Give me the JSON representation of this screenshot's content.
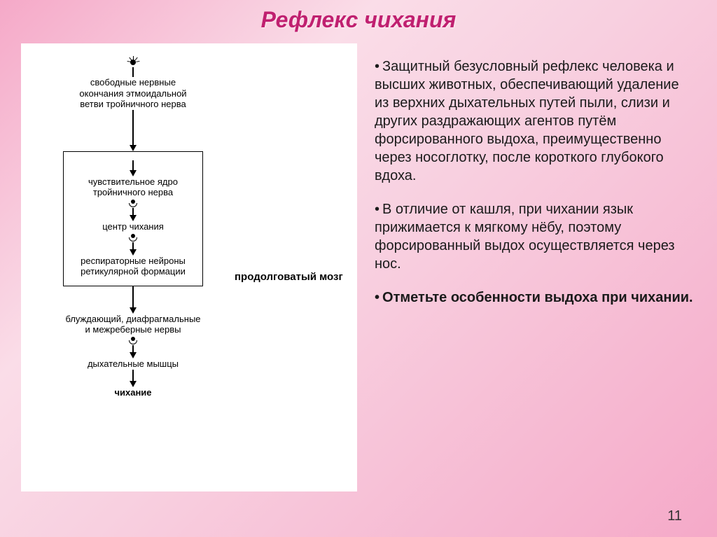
{
  "title": "Рефлекс чихания",
  "diagram": {
    "nodes": [
      {
        "id": "receptor",
        "label": "",
        "icon": "receptor"
      },
      {
        "id": "n1",
        "label": "свободные нервные\nокончания этмоидальной\nветви тройничного нерва"
      },
      {
        "id": "box_start"
      },
      {
        "id": "n2",
        "label": "чувствительное ядро\nтройничного нерва"
      },
      {
        "id": "syn1",
        "icon": "synapse"
      },
      {
        "id": "n3",
        "label": "центр чихания"
      },
      {
        "id": "syn2",
        "icon": "synapse"
      },
      {
        "id": "n4",
        "label": "респираторные нейроны\nретикулярной формации"
      },
      {
        "id": "box_end"
      },
      {
        "id": "n5",
        "label": "блуждающий, диафрагмальные\nи межреберные нервы"
      },
      {
        "id": "syn3",
        "icon": "synapse"
      },
      {
        "id": "n6",
        "label": "дыхательные мышцы"
      },
      {
        "id": "n7",
        "label": "чихание",
        "bold": true
      }
    ],
    "side_label": "продолговатый мозг",
    "colors": {
      "background": "#ffffff",
      "text": "#000000",
      "border": "#000000"
    },
    "label_fontsize": 13,
    "side_label_fontsize": 15
  },
  "paragraphs": [
    {
      "text": "Защитный безусловный рефлекс человека и высших животных, обеспечивающий удаление из верхних дыхательных путей пыли, слизи и других раздражающих агентов путём форсированного выдоха, преимущественно через носоглотку, после короткого глубокого вдоха.",
      "bold": false
    },
    {
      "text": "В отличие от кашля, при чихании язык прижимается к мягкому нёбу, поэтому форсированный выдох осуществляется через нос.",
      "bold": false
    },
    {
      "text": "Отметьте особенности выдоха при чихании.",
      "bold": true
    }
  ],
  "page_number": "11",
  "style": {
    "title_color": "#c02070",
    "title_fontsize": 32,
    "body_fontsize": 20,
    "bg_gradient": [
      "#f5a9c8",
      "#fadde8",
      "#f8d0e0",
      "#f5a9c8"
    ]
  }
}
